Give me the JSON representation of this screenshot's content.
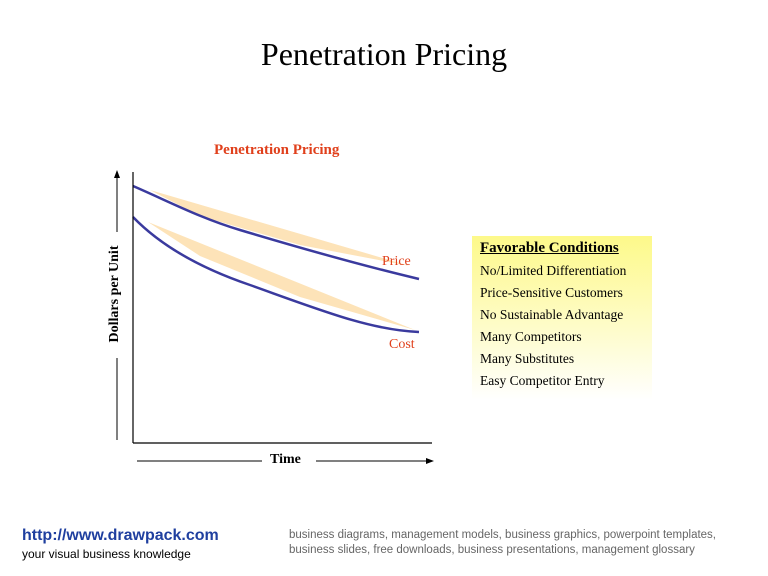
{
  "title": "Penetration Pricing",
  "diagram": {
    "subtitle": "Penetration Pricing",
    "y_axis_label": "Dollars per Unit",
    "x_axis_label": "Time",
    "curves": [
      "Price",
      "Cost"
    ],
    "colors": {
      "curve": "#3a3a9e",
      "shade": "#fde3b8",
      "label": "#e0401c"
    }
  },
  "conditions": {
    "heading": "Favorable Conditions",
    "items": [
      "No/Limited Differentiation",
      "Price-Sensitive Customers",
      "No Sustainable Advantage",
      "Many Competitors",
      "Many Substitutes",
      "Easy Competitor Entry"
    ]
  },
  "footer": {
    "url": "http://www.drawpack.com",
    "tagline": "your visual business knowledge",
    "keywords": "business diagrams, management models, business graphics, powerpoint templates, business slides, free downloads, business presentations, management glossary"
  }
}
